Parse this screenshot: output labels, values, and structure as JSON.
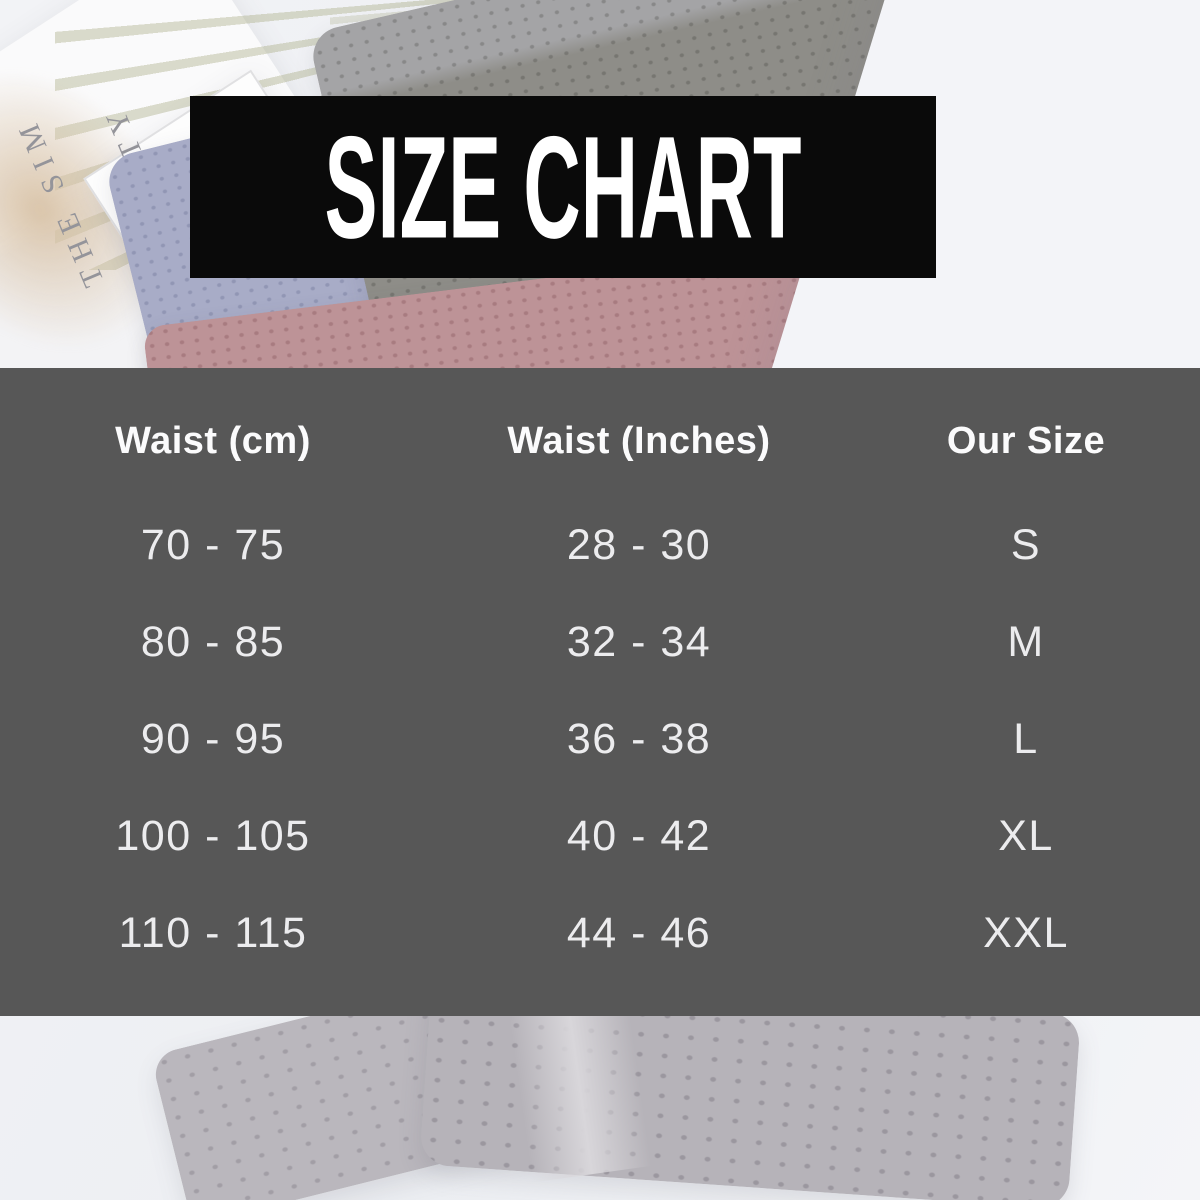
{
  "banner": {
    "title": "SIZE CHART",
    "background_color": "#0a0a0a",
    "text_color": "#ffffff"
  },
  "table": {
    "background_color": "#575757",
    "text_color": "#ececee",
    "headers": [
      "Waist (cm)",
      "Waist (Inches)",
      "Our Size"
    ],
    "rows": [
      {
        "waist_cm": "70 - 75",
        "waist_inches": "28 - 30",
        "size": "S"
      },
      {
        "waist_cm": "80 - 85",
        "waist_inches": "32 - 34",
        "size": "M"
      },
      {
        "waist_cm": "90 - 95",
        "waist_inches": "36 - 38",
        "size": "L"
      },
      {
        "waist_cm": "100 - 105",
        "waist_inches": "40 - 42",
        "size": "XL"
      },
      {
        "waist_cm": "110 - 115",
        "waist_inches": "44 - 46",
        "size": "XXL"
      }
    ]
  },
  "background_photo": {
    "card_texts": [
      "THE SIM",
      "LARITY"
    ],
    "colors": {
      "black_boxer_faded": "#8e8d88",
      "navy_boxer_faded": "#a8acc7",
      "maroon_boxer_faded": "#bd9397",
      "gray_boxer_faded": "#b6b3b9",
      "surface": "#eef0f3"
    }
  },
  "chart_data": {
    "type": "table",
    "title": "SIZE CHART",
    "columns": [
      "Waist (cm)",
      "Waist (Inches)",
      "Our Size"
    ],
    "rows": [
      [
        "70 - 75",
        "28 - 30",
        "S"
      ],
      [
        "80 - 85",
        "32 - 34",
        "M"
      ],
      [
        "90 - 95",
        "36 - 38",
        "L"
      ],
      [
        "100 - 105",
        "40 - 42",
        "XL"
      ],
      [
        "110 - 115",
        "44 - 46",
        "XXL"
      ]
    ]
  }
}
